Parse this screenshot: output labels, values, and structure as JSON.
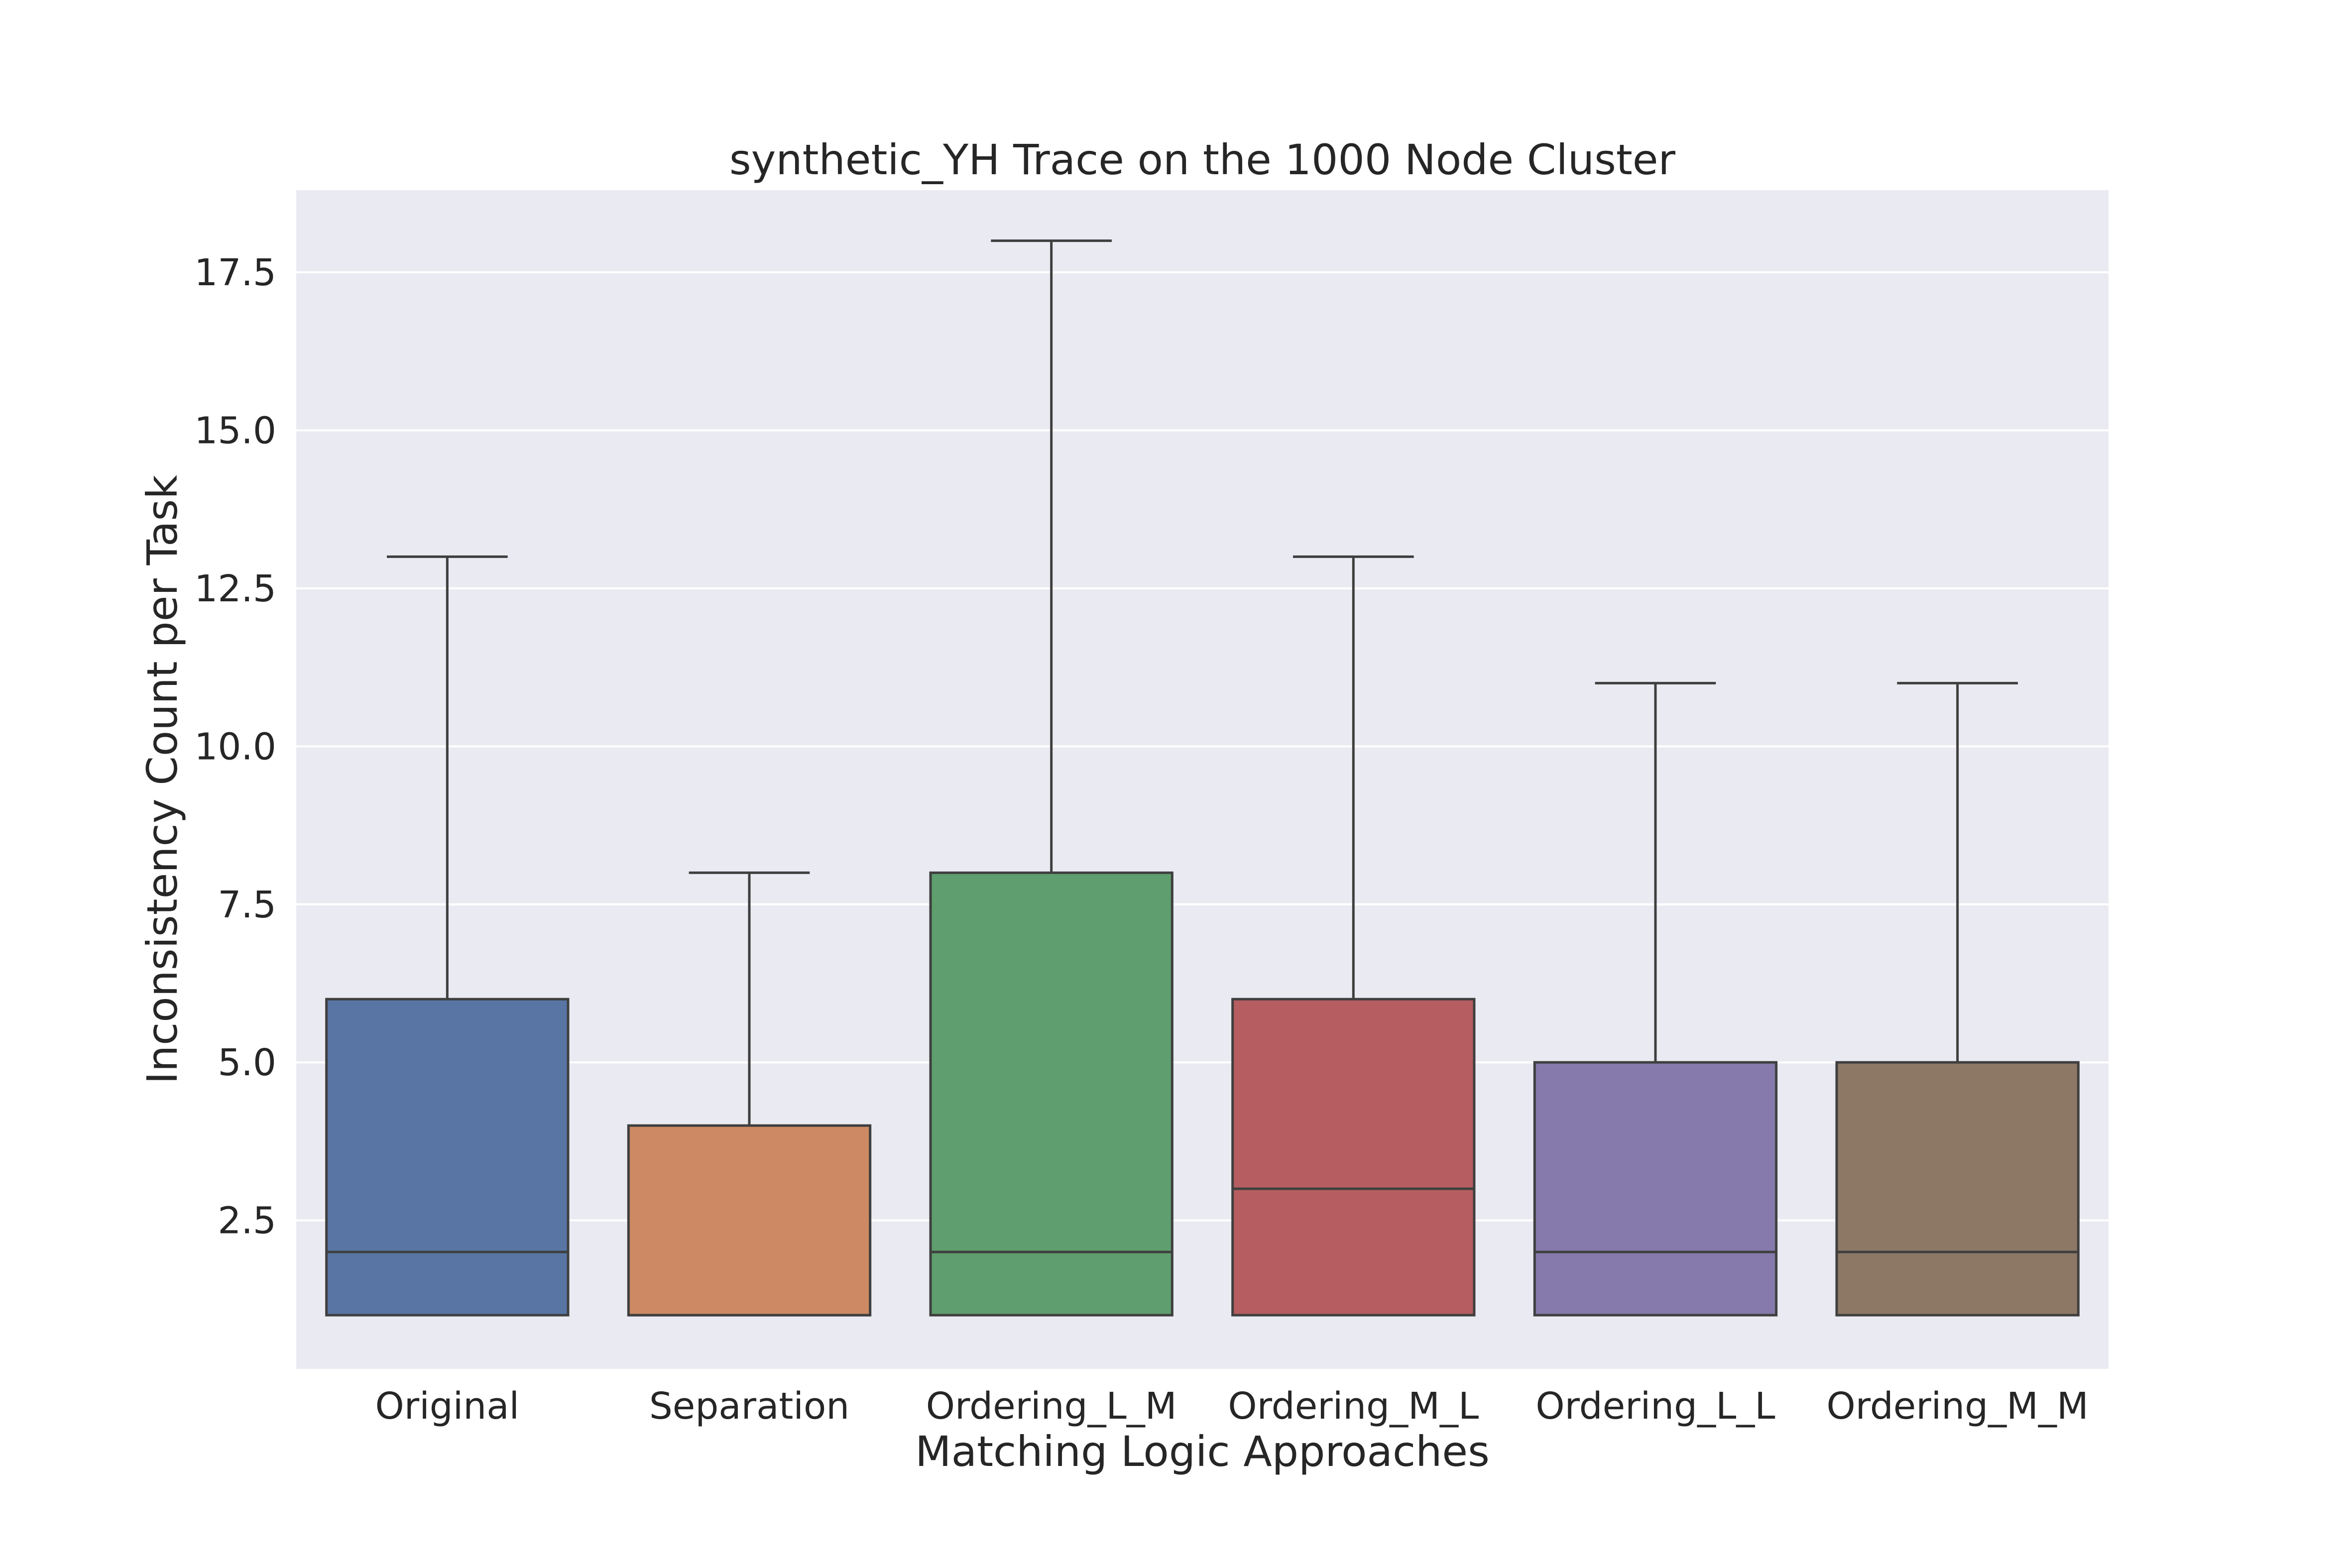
{
  "chart_data": {
    "type": "box",
    "title": "synthetic_YH Trace on the 1000 Node Cluster",
    "xlabel": "Matching Logic Approaches",
    "ylabel": "Inconsistency Count per Task",
    "ylim": [
      0.15,
      18.8
    ],
    "yticks": [
      "2.5",
      "5.0",
      "7.5",
      "10.0",
      "12.5",
      "15.0",
      "17.5"
    ],
    "grid": true,
    "legend": "none",
    "categories": [
      "Original",
      "Separation",
      "Ordering_L_M",
      "Ordering_M_L",
      "Ordering_L_L",
      "Ordering_M_M"
    ],
    "boxes": [
      {
        "category": "Original",
        "whisker_low": 1,
        "q1": 1,
        "median": 2,
        "q3": 6,
        "whisker_high": 13,
        "color": "#5875a4"
      },
      {
        "category": "Separation",
        "whisker_low": 1,
        "q1": 1,
        "median": 1,
        "q3": 4,
        "whisker_high": 8,
        "color": "#cc8963"
      },
      {
        "category": "Ordering_L_M",
        "whisker_low": 1,
        "q1": 1,
        "median": 2,
        "q3": 8,
        "whisker_high": 18,
        "color": "#5f9e6e"
      },
      {
        "category": "Ordering_M_L",
        "whisker_low": 1,
        "q1": 1,
        "median": 3,
        "q3": 6,
        "whisker_high": 13,
        "color": "#b55d60"
      },
      {
        "category": "Ordering_L_L",
        "whisker_low": 1,
        "q1": 1,
        "median": 2,
        "q3": 5,
        "whisker_high": 11,
        "color": "#857aab"
      },
      {
        "category": "Ordering_M_M",
        "whisker_low": 1,
        "q1": 1,
        "median": 2,
        "q3": 5,
        "whisker_high": 11,
        "color": "#8d7866"
      }
    ],
    "colors": {
      "plot_background": "#eaeaf2",
      "grid": "#ffffff",
      "box_edge": "#3f3f3f"
    }
  }
}
